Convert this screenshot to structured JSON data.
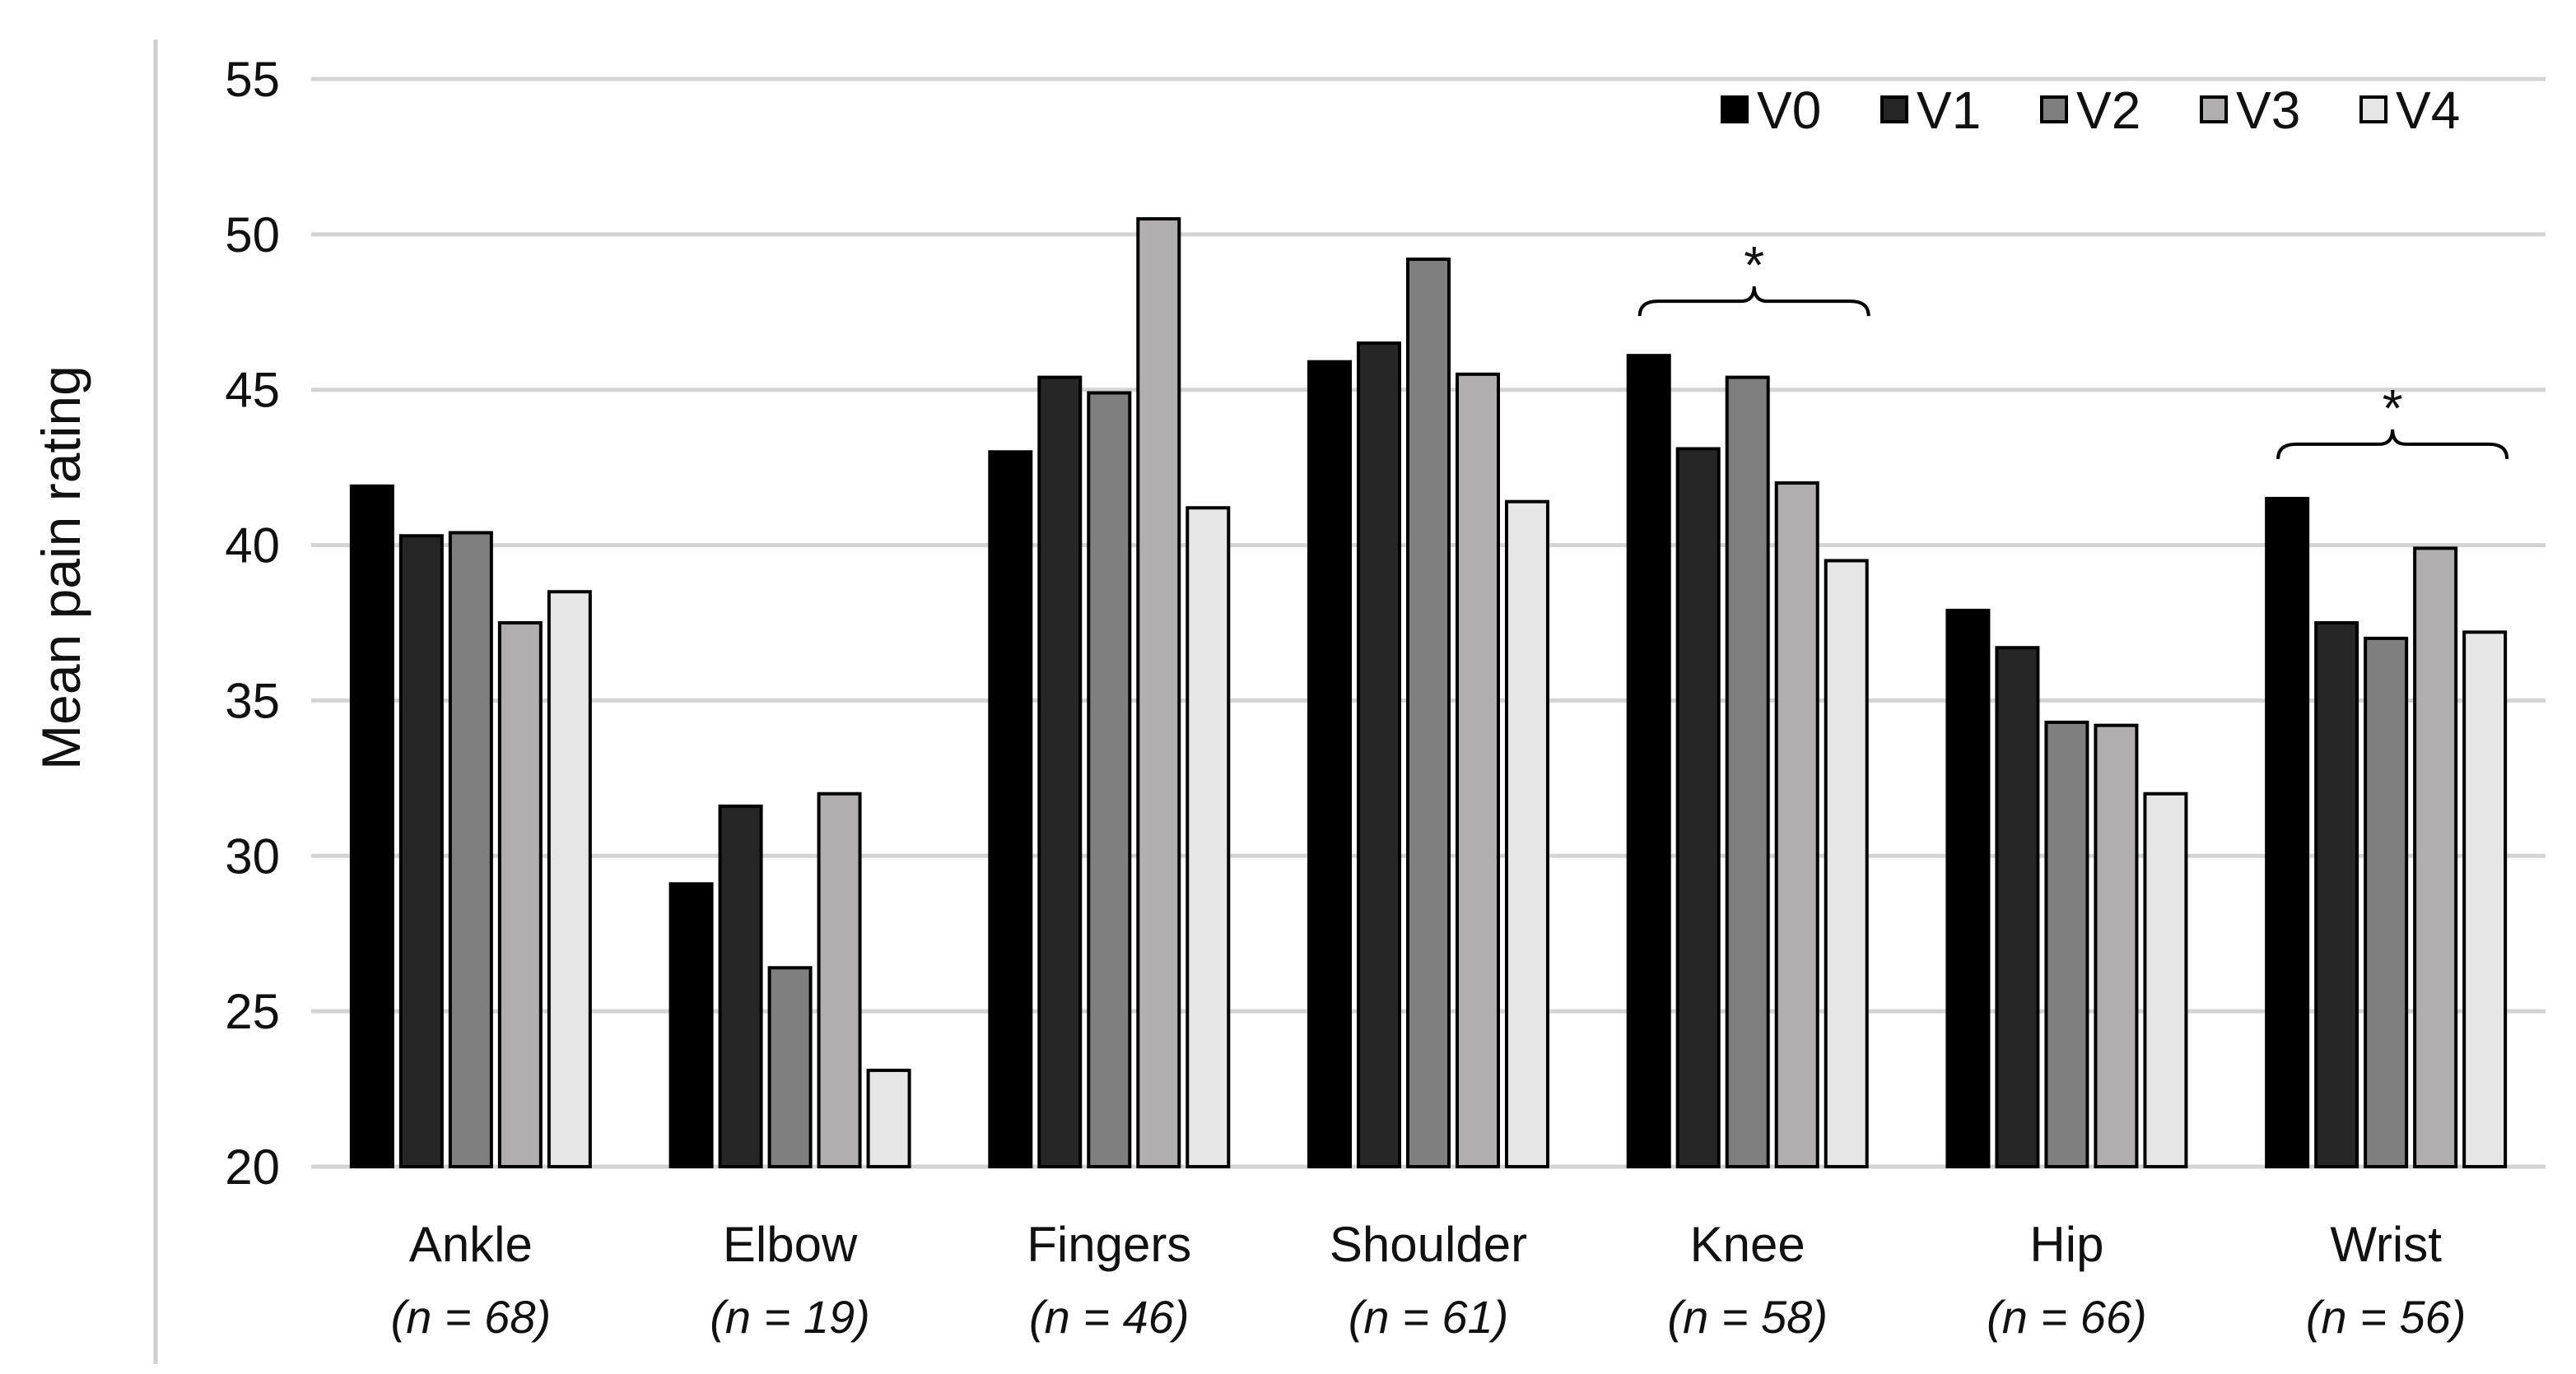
{
  "chart_data": {
    "type": "bar",
    "title": "",
    "xlabel": "",
    "ylabel": "Mean pain rating",
    "ylim": [
      20,
      55
    ],
    "yticks": [
      "20",
      "25",
      "30",
      "35",
      "40",
      "45",
      "50",
      "55"
    ],
    "grid": true,
    "legend_position": "top-right",
    "categories": [
      "Ankle",
      "Elbow",
      "Fingers",
      "Shoulder",
      "Knee",
      "Hip",
      "Wrist"
    ],
    "category_n": [
      "(n = 68)",
      "(n = 19)",
      "(n = 46)",
      "(n = 61)",
      "(n = 58)",
      "(n = 66)",
      "(n = 56)"
    ],
    "series": [
      {
        "name": "V0",
        "color": "#000000",
        "values": [
          41.9,
          29.1,
          43.0,
          45.9,
          46.1,
          37.9,
          41.5
        ]
      },
      {
        "name": "V1",
        "color": "#262626",
        "values": [
          40.3,
          31.6,
          45.4,
          46.5,
          43.1,
          36.7,
          37.5
        ]
      },
      {
        "name": "V2",
        "color": "#7f7f7f",
        "values": [
          40.4,
          26.4,
          44.9,
          49.2,
          45.4,
          34.3,
          37.0
        ]
      },
      {
        "name": "V3",
        "color": "#b0aeae",
        "values": [
          37.5,
          32.0,
          50.5,
          45.5,
          42.0,
          34.2,
          39.9
        ]
      },
      {
        "name": "V4",
        "color": "#e6e6e6",
        "values": [
          38.5,
          23.1,
          41.2,
          41.4,
          39.5,
          32.0,
          37.2
        ]
      }
    ],
    "annotations": [
      {
        "category": "Knee",
        "text": "*"
      },
      {
        "category": "Wrist",
        "text": "*"
      }
    ]
  }
}
